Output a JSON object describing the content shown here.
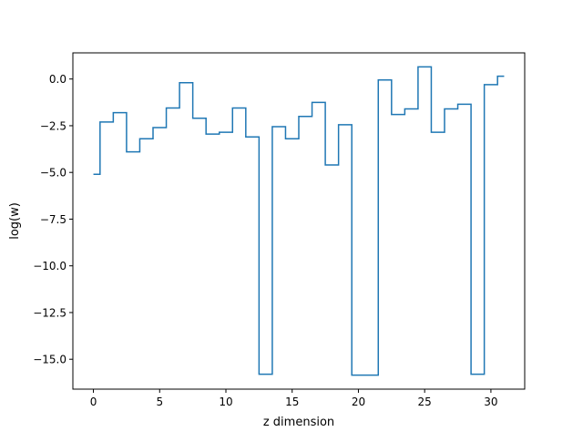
{
  "chart_data": {
    "type": "line",
    "drawstyle": "steps-mid",
    "title": "",
    "xlabel": "z dimension",
    "ylabel": "log(w)",
    "xlim": [
      -1.55,
      32.55
    ],
    "ylim": [
      -16.6,
      1.4
    ],
    "grid": false,
    "legend": "none",
    "xticks": [
      0,
      5,
      10,
      15,
      20,
      25,
      30
    ],
    "xtick_labels": [
      "0",
      "5",
      "10",
      "15",
      "20",
      "25",
      "30"
    ],
    "yticks": [
      0.0,
      -2.5,
      -5.0,
      -7.5,
      -10.0,
      -12.5,
      -15.0
    ],
    "ytick_labels": [
      "0.0",
      "−2.5",
      "−5.0",
      "−7.5",
      "−10.0",
      "−12.5",
      "−15.0"
    ],
    "series": [
      {
        "color": "#1f77b4",
        "x": [
          0,
          1,
          2,
          3,
          4,
          5,
          6,
          7,
          8,
          9,
          10,
          11,
          12,
          13,
          14,
          15,
          16,
          17,
          18,
          19,
          20,
          21,
          22,
          23,
          24,
          25,
          26,
          27,
          28,
          29,
          30,
          31
        ],
        "y": [
          -5.1,
          -2.3,
          -1.8,
          -3.9,
          -3.2,
          -2.6,
          -1.55,
          -0.2,
          -2.1,
          -2.95,
          -2.85,
          -1.55,
          -3.1,
          -15.8,
          -2.55,
          -3.2,
          -2.0,
          -1.25,
          -4.6,
          -2.45,
          -15.85,
          -15.85,
          -0.05,
          -1.9,
          -1.6,
          0.65,
          -2.85,
          -1.6,
          -1.35,
          -15.8,
          -0.3,
          0.15
        ]
      }
    ]
  }
}
